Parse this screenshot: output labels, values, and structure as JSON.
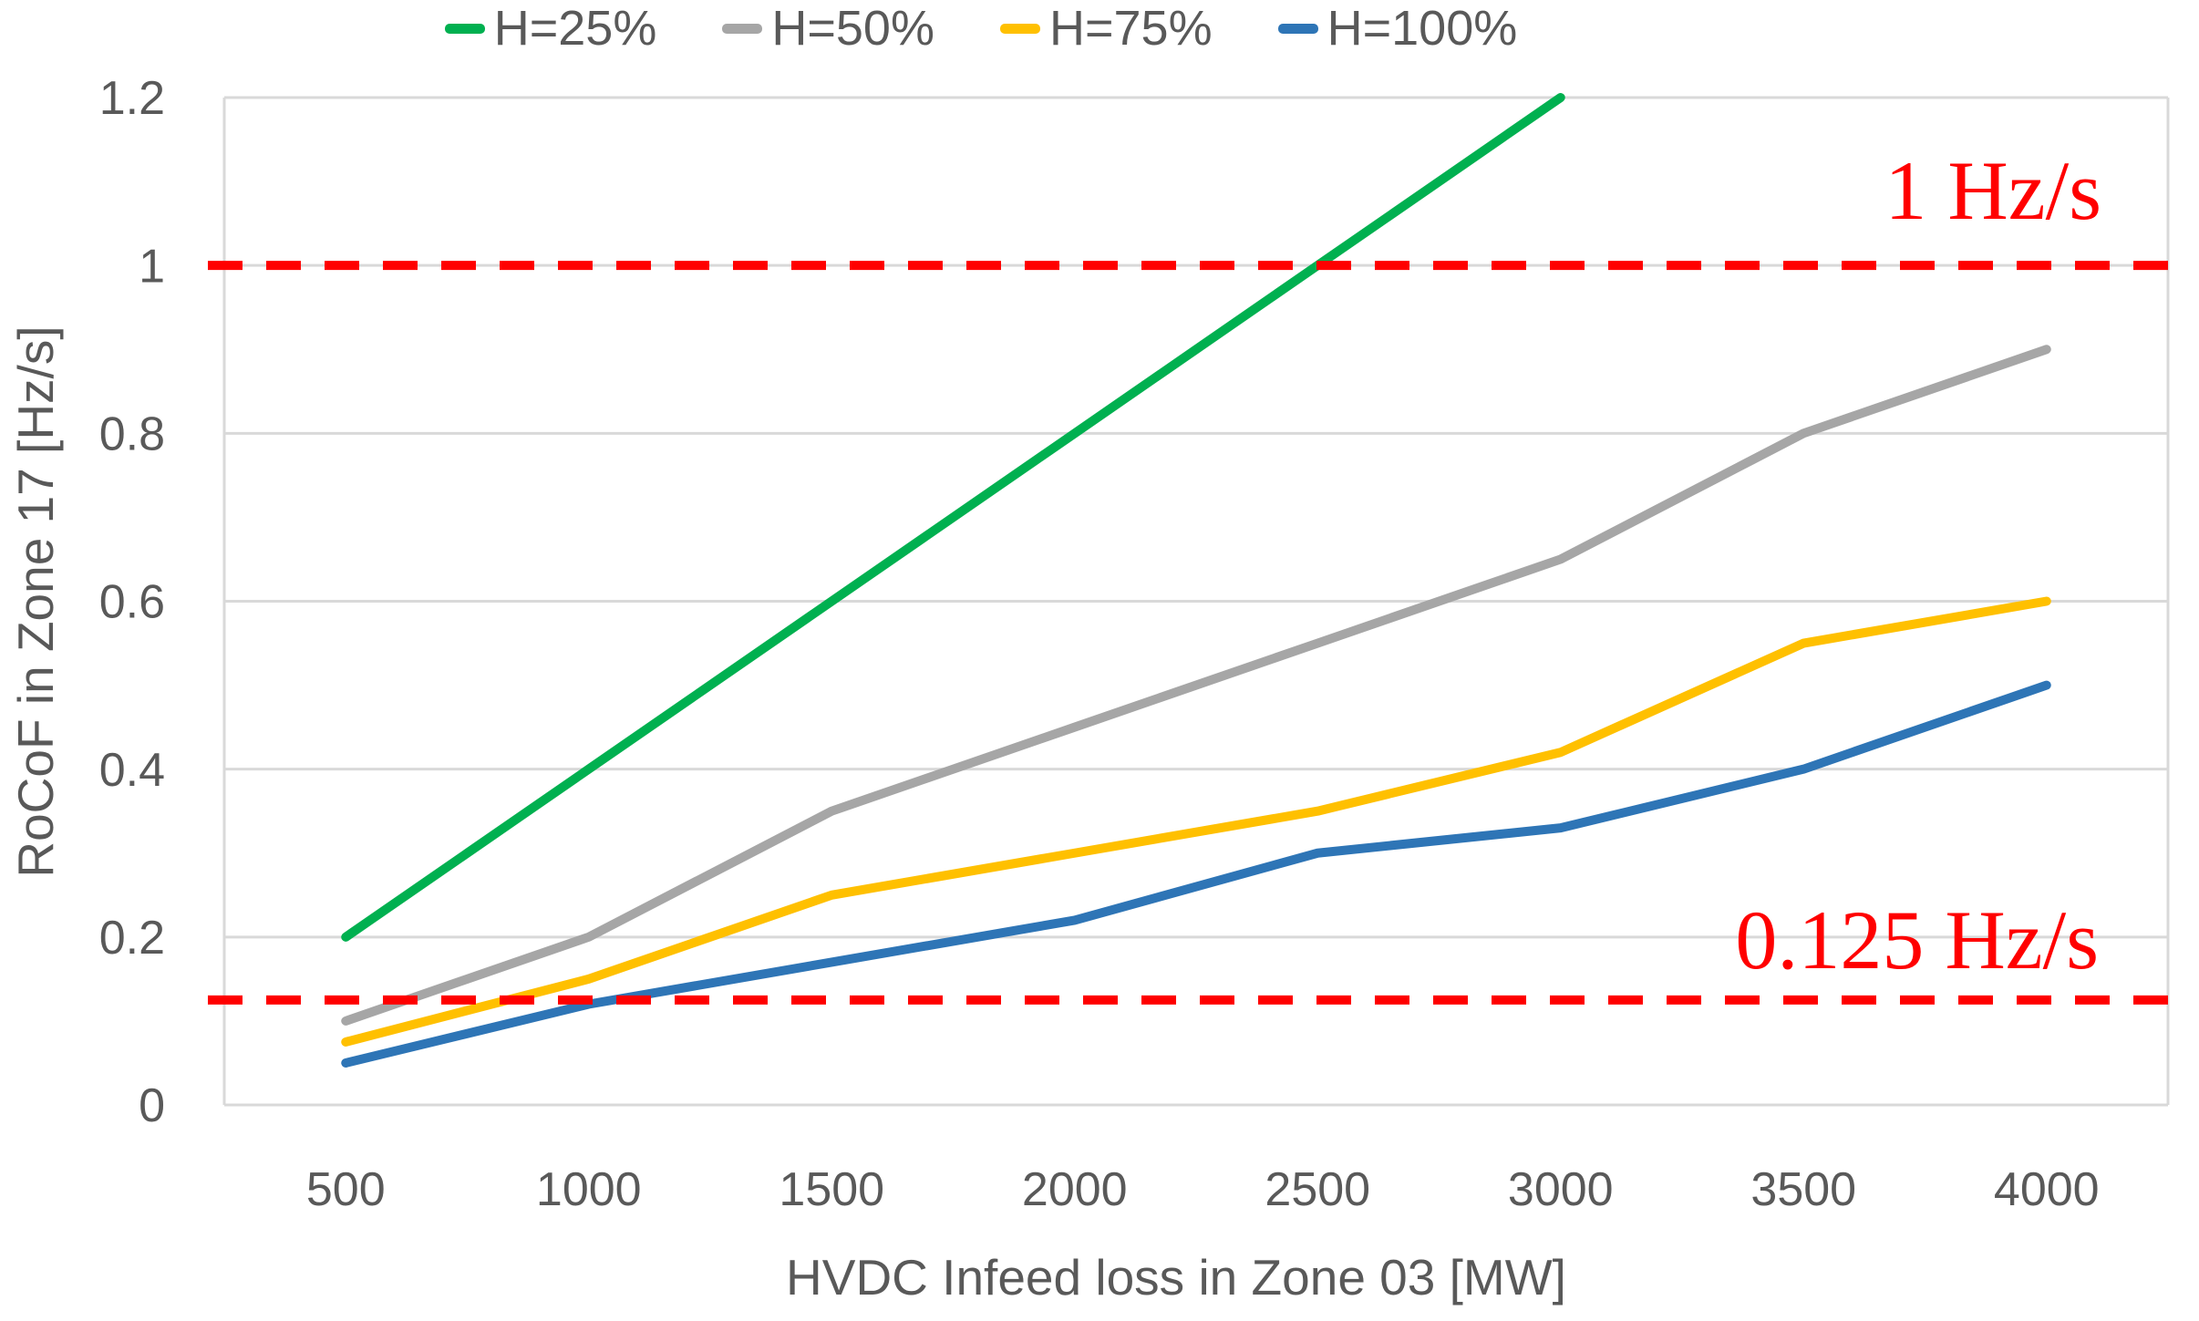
{
  "legend": {
    "items": [
      {
        "label": "H=25%",
        "color": "#00B050"
      },
      {
        "label": "H=50%",
        "color": "#A6A6A6"
      },
      {
        "label": "H=75%",
        "color": "#FFC000"
      },
      {
        "label": "H=100%",
        "color": "#2E75B6"
      }
    ]
  },
  "y_axis": {
    "title": "RoCoF in Zone 17 [Hz/s]",
    "ticks": [
      {
        "label": "1.2",
        "value": 1.2
      },
      {
        "label": "1",
        "value": 1.0
      },
      {
        "label": "0.8",
        "value": 0.8
      },
      {
        "label": "0.6",
        "value": 0.6
      },
      {
        "label": "0.4",
        "value": 0.4
      },
      {
        "label": "0.2",
        "value": 0.2
      },
      {
        "label": "0",
        "value": 0
      }
    ]
  },
  "x_axis": {
    "title": "HVDC Infeed loss in Zone 03 [MW]",
    "ticks": [
      {
        "label": "500",
        "value": 500
      },
      {
        "label": "1000",
        "value": 1000
      },
      {
        "label": "1500",
        "value": 1500
      },
      {
        "label": "2000",
        "value": 2000
      },
      {
        "label": "2500",
        "value": 2500
      },
      {
        "label": "3000",
        "value": 3000
      },
      {
        "label": "3500",
        "value": 3500
      },
      {
        "label": "4000",
        "value": 4000
      }
    ]
  },
  "chart_data": {
    "type": "line",
    "x": [
      500,
      1000,
      1500,
      2000,
      2500,
      3000,
      3500,
      4000
    ],
    "series": [
      {
        "name": "H=25%",
        "color": "#00B050",
        "values": [
          0.2,
          0.4,
          0.6,
          0.8,
          1.0,
          1.2,
          null,
          null
        ]
      },
      {
        "name": "H=50%",
        "color": "#A6A6A6",
        "values": [
          0.1,
          0.2,
          0.35,
          0.45,
          0.55,
          0.65,
          0.8,
          0.9
        ]
      },
      {
        "name": "H=75%",
        "color": "#FFC000",
        "values": [
          0.075,
          0.15,
          0.25,
          0.3,
          0.35,
          0.42,
          0.55,
          0.6
        ]
      },
      {
        "name": "H=100%",
        "color": "#2E75B6",
        "values": [
          0.05,
          0.12,
          0.17,
          0.22,
          0.3,
          0.33,
          0.4,
          0.5
        ]
      }
    ],
    "title": "",
    "xlabel": "HVDC Infeed loss in Zone 03 [MW]",
    "ylabel": "RoCoF in Zone 17 [Hz/s]",
    "ylim": [
      0,
      1.2
    ],
    "yticks": [
      0,
      0.2,
      0.4,
      0.6,
      0.8,
      1.0,
      1.2
    ],
    "grid": "horizontal",
    "legend_position": "top",
    "thresholds": [
      {
        "label": "1 Hz/s",
        "value": 1.0,
        "color": "#FF0000",
        "style": "dashed"
      },
      {
        "label": "0.125 Hz/s",
        "value": 0.125,
        "color": "#FF0000",
        "style": "dashed"
      }
    ]
  }
}
